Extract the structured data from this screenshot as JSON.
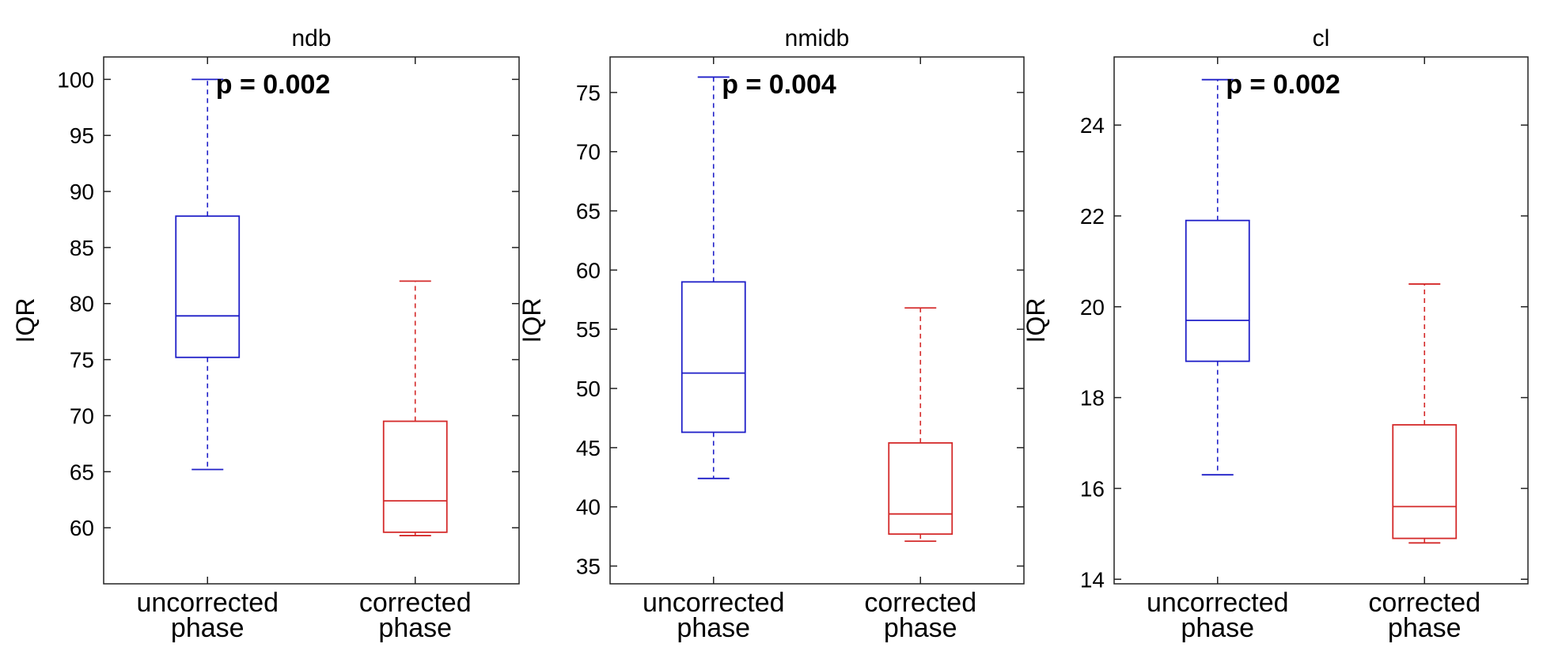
{
  "chart_data": [
    {
      "type": "box",
      "title": "ndb",
      "ylabel": "IQR",
      "annotation": "p = 0.002",
      "ylim": [
        55,
        102
      ],
      "yticks": [
        60,
        65,
        70,
        75,
        80,
        85,
        90,
        95,
        100
      ],
      "categories": [
        "uncorrected phase",
        "corrected phase"
      ],
      "category_lines": [
        [
          "uncorrected",
          "phase"
        ],
        [
          "corrected",
          "phase"
        ]
      ],
      "boxes": [
        {
          "name": "uncorrected phase",
          "color": "#1f1fc8",
          "whisker_low": 65.2,
          "q1": 75.2,
          "median": 78.9,
          "q3": 87.8,
          "whisker_high": 100.0
        },
        {
          "name": "corrected phase",
          "color": "#d42a2a",
          "whisker_low": 59.3,
          "q1": 59.6,
          "median": 62.4,
          "q3": 69.5,
          "whisker_high": 82.0
        }
      ]
    },
    {
      "type": "box",
      "title": "nmidb",
      "ylabel": "IQR",
      "annotation": "p = 0.004",
      "ylim": [
        33.5,
        78
      ],
      "yticks": [
        35,
        40,
        45,
        50,
        55,
        60,
        65,
        70,
        75
      ],
      "categories": [
        "uncorrected phase",
        "corrected phase"
      ],
      "category_lines": [
        [
          "uncorrected",
          "phase"
        ],
        [
          "corrected",
          "phase"
        ]
      ],
      "boxes": [
        {
          "name": "uncorrected phase",
          "color": "#1f1fc8",
          "whisker_low": 42.4,
          "q1": 46.3,
          "median": 51.3,
          "q3": 59.0,
          "whisker_high": 76.3
        },
        {
          "name": "corrected phase",
          "color": "#d42a2a",
          "whisker_low": 37.1,
          "q1": 37.7,
          "median": 39.4,
          "q3": 45.4,
          "whisker_high": 56.8
        }
      ]
    },
    {
      "type": "box",
      "title": "cl",
      "ylabel": "IQR",
      "annotation": "p = 0.002",
      "ylim": [
        13.9,
        25.5
      ],
      "yticks": [
        14,
        16,
        18,
        20,
        22,
        24
      ],
      "categories": [
        "uncorrected phase",
        "corrected phase"
      ],
      "category_lines": [
        [
          "uncorrected",
          "phase"
        ],
        [
          "corrected",
          "phase"
        ]
      ],
      "boxes": [
        {
          "name": "uncorrected phase",
          "color": "#1f1fc8",
          "whisker_low": 16.3,
          "q1": 18.8,
          "median": 19.7,
          "q3": 21.9,
          "whisker_high": 25.0
        },
        {
          "name": "corrected phase",
          "color": "#d42a2a",
          "whisker_low": 14.8,
          "q1": 14.9,
          "median": 15.6,
          "q3": 17.4,
          "whisker_high": 20.5
        }
      ]
    }
  ]
}
